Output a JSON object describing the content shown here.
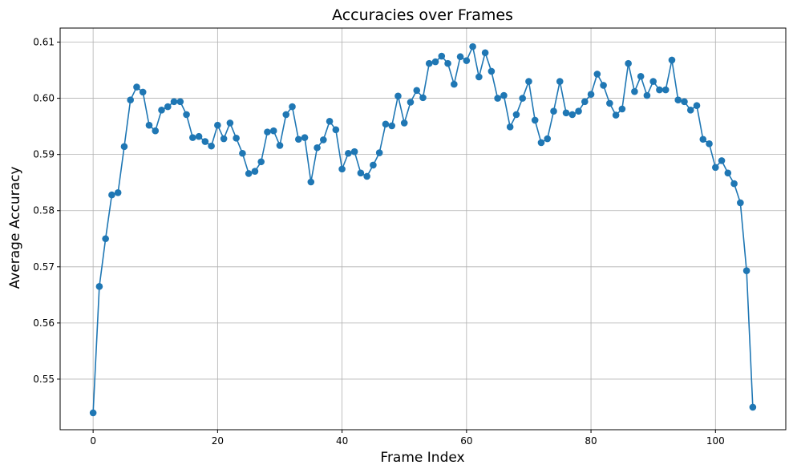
{
  "chart_data": {
    "type": "line",
    "title": "Accuracies over Frames",
    "xlabel": "Frame Index",
    "ylabel": "Average Accuracy",
    "xlim": [
      -5.3,
      111.3
    ],
    "ylim": [
      0.541,
      0.6125
    ],
    "xticks": [
      0,
      20,
      40,
      60,
      80,
      100
    ],
    "yticks": [
      0.55,
      0.56,
      0.57,
      0.58,
      0.59,
      0.6,
      0.61
    ],
    "ytick_labels": [
      "0.55",
      "0.56",
      "0.57",
      "0.58",
      "0.59",
      "0.60",
      "0.61"
    ],
    "grid": true,
    "marker": "circle",
    "color": "#1f77b4",
    "series": [
      {
        "values": [
          0.544,
          0.5665,
          0.575,
          0.5828,
          0.5832,
          0.5914,
          0.5997,
          0.602,
          0.6011,
          0.5952,
          0.5942,
          0.5979,
          0.5985,
          0.5994,
          0.5994,
          0.5971,
          0.593,
          0.5932,
          0.5923,
          0.5915,
          0.5952,
          0.5928,
          0.5956,
          0.5929,
          0.5902,
          0.5866,
          0.587,
          0.5887,
          0.594,
          0.5942,
          0.5916,
          0.5971,
          0.5985,
          0.5927,
          0.593,
          0.5851,
          0.5912,
          0.5926,
          0.5959,
          0.5944,
          0.5874,
          0.5902,
          0.5905,
          0.5867,
          0.5861,
          0.5881,
          0.5903,
          0.5954,
          0.5951,
          0.6004,
          0.5956,
          0.5993,
          0.6014,
          0.6001,
          0.6062,
          0.6065,
          0.6075,
          0.6062,
          0.6025,
          0.6074,
          0.6067,
          0.6092,
          0.6038,
          0.6081,
          0.6048,
          0.6,
          0.6005,
          0.5949,
          0.5971,
          0.6,
          0.603,
          0.5961,
          0.5921,
          0.5928,
          0.5977,
          0.603,
          0.5974,
          0.5971,
          0.5977,
          0.5994,
          0.6007,
          0.6043,
          0.6023,
          0.5991,
          0.597,
          0.5981,
          0.6062,
          0.6012,
          0.6039,
          0.6005,
          0.603,
          0.6015,
          0.6015,
          0.6068,
          0.5997,
          0.5994,
          0.5979,
          0.5987,
          0.5927,
          0.5919,
          0.5877,
          0.5889,
          0.5867,
          0.5848,
          0.5814,
          0.5693,
          0.545
        ]
      }
    ]
  }
}
